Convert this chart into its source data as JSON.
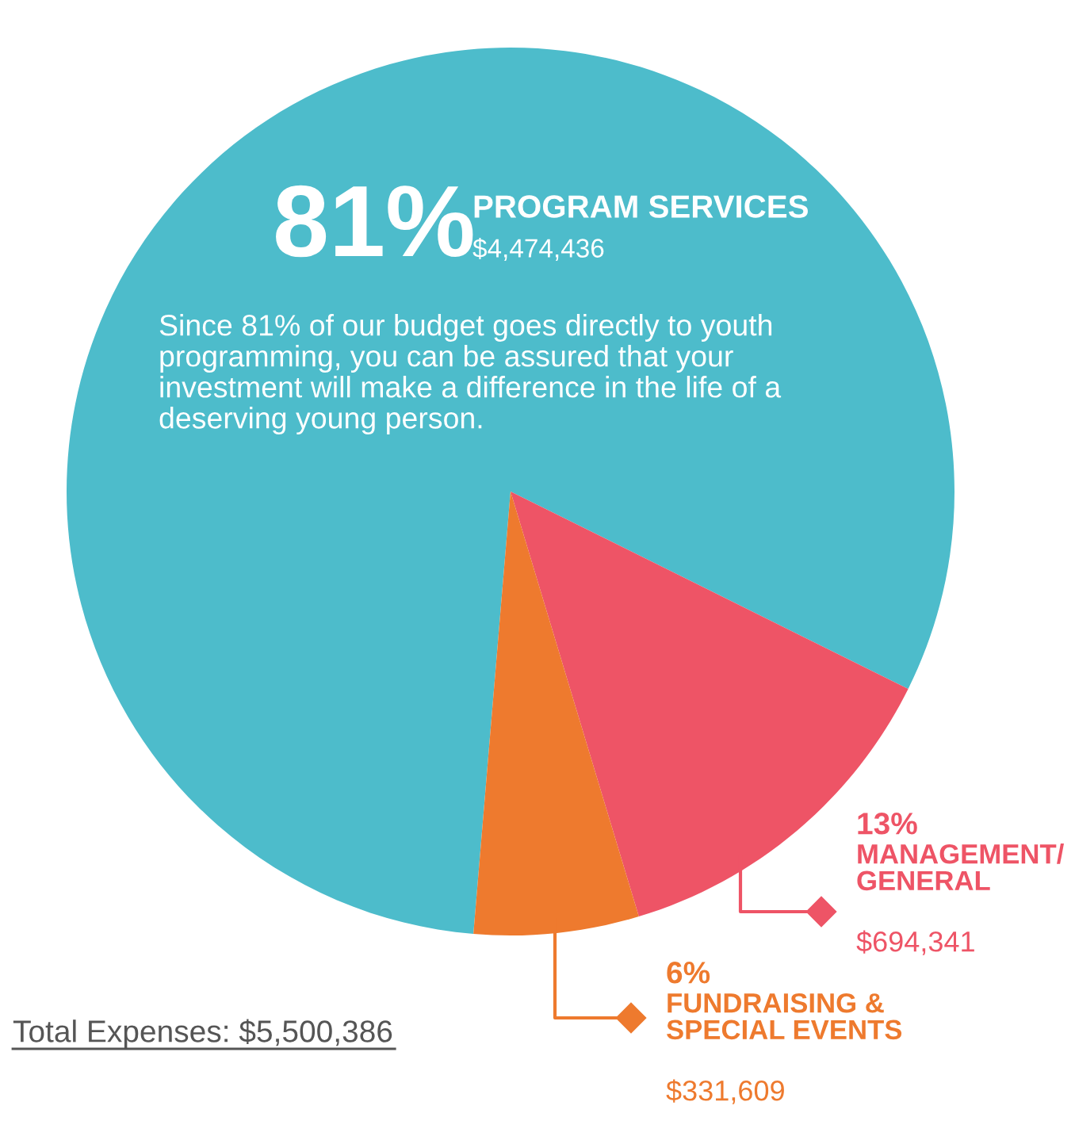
{
  "chart_data": {
    "type": "pie",
    "categories": [
      "PROGRAM SERVICES",
      "MANAGEMENT/\nGENERAL",
      "FUNDRAISING &\nSPECIAL EVENTS"
    ],
    "values": [
      81,
      13,
      6
    ],
    "colors": [
      "#4dbccb",
      "#ee5466",
      "#ee7a2e"
    ],
    "value_labels": [
      "81%",
      "13%",
      "6%"
    ],
    "annotations": [
      "$4,474,436",
      "$694,341",
      "$331,609",
      "Since 81% of our budget goes directly to youth\nprogramming, you can be assured that your\ninvestment will make a difference in the life of a\ndeserving young person.",
      "Total Expenses: $5,500,386"
    ],
    "legend": "bottom right"
  }
}
